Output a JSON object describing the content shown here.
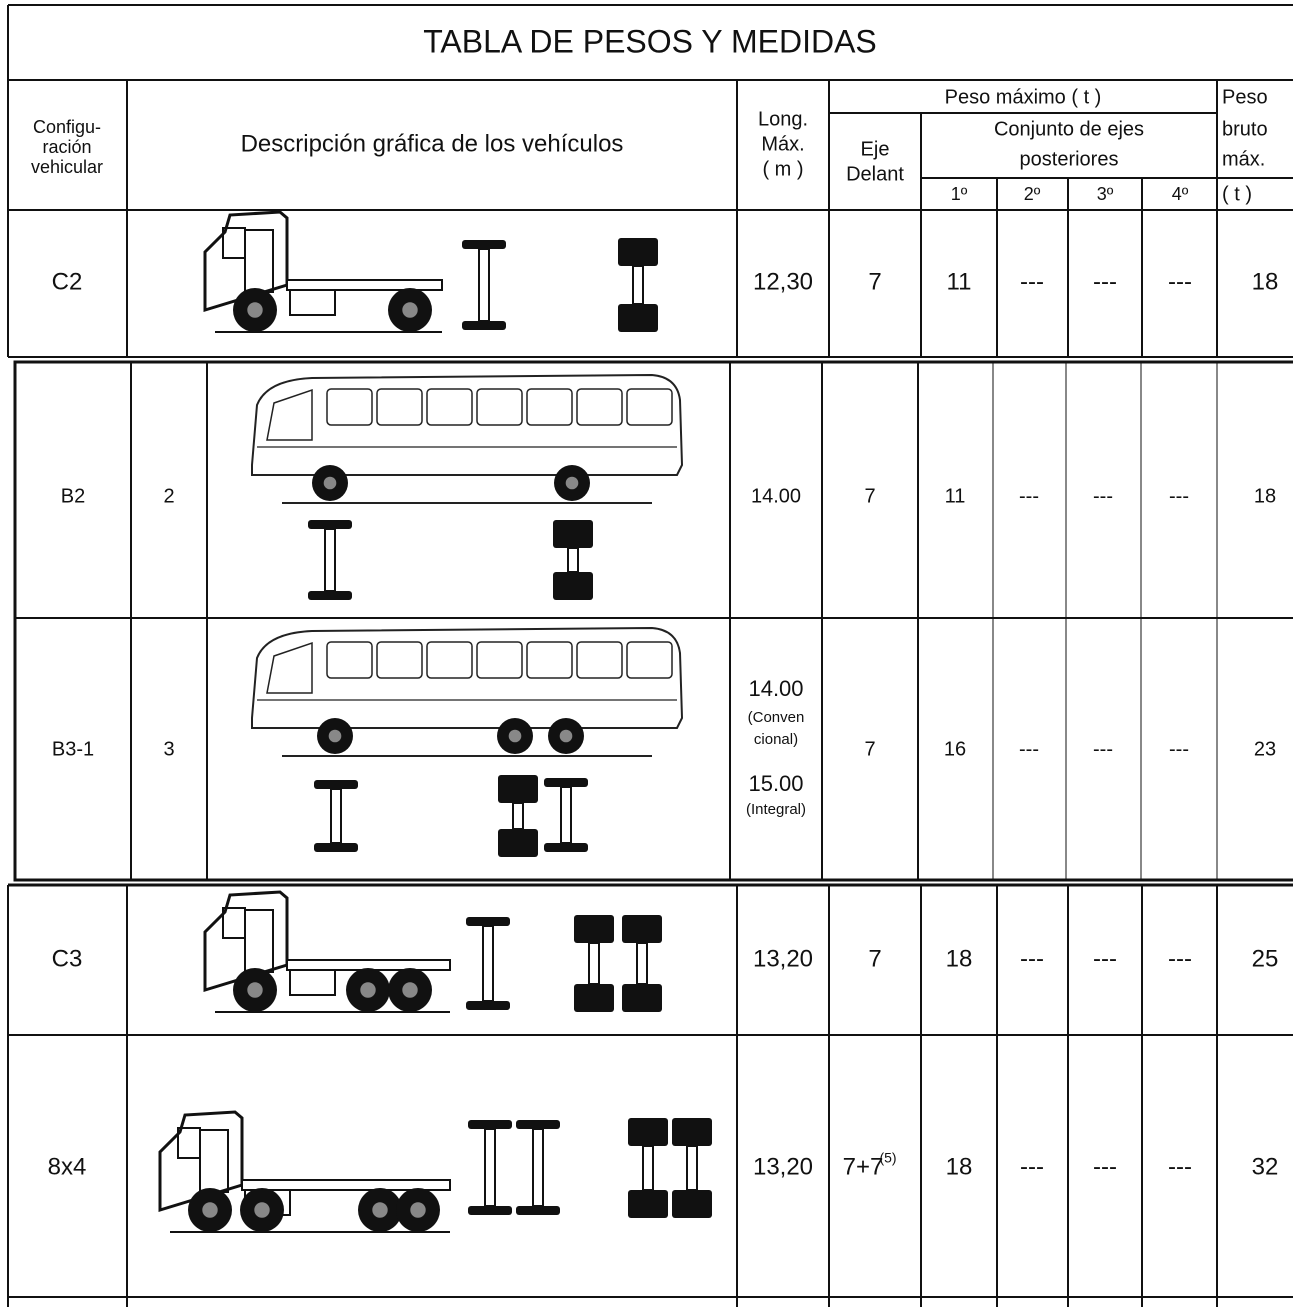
{
  "title": "TABLA DE PESOS Y MEDIDAS",
  "header": {
    "configuration": [
      "Configu-",
      "ración",
      "vehicular"
    ],
    "description": "Descripción gráfica de los vehículos",
    "length": [
      "Long.",
      "Máx.",
      "( m )"
    ],
    "max_weight": "Peso máximo  ( t )",
    "front_axle": [
      "Eje",
      "Delant"
    ],
    "rear_axles": [
      "Conjunto de ejes",
      "posteriores"
    ],
    "rear_axle_numbers": [
      "1º",
      "2º",
      "3º",
      "4º"
    ],
    "gross_weight": [
      "Peso",
      "bruto",
      "máx.",
      "( t )"
    ]
  },
  "rows": [
    {
      "configuration": "C2",
      "length": [
        "12,30"
      ],
      "front_axle": "7",
      "rear_axles": [
        "11",
        "---",
        "---",
        "---"
      ],
      "gross_weight": "18"
    },
    {
      "configuration": "B2",
      "axle_count": "2",
      "length": [
        "14.00"
      ],
      "front_axle": "7",
      "rear_axles": [
        "11",
        "---",
        "---",
        "---"
      ],
      "gross_weight": "18"
    },
    {
      "configuration": "B3-1",
      "axle_count": "3",
      "length": [
        "14.00",
        "(Conven",
        "cional)",
        "15.00",
        "(Integral)"
      ],
      "front_axle": "7",
      "rear_axles": [
        "16",
        "---",
        "---",
        "---"
      ],
      "gross_weight": "23"
    },
    {
      "configuration": "C3",
      "length": [
        "13,20"
      ],
      "front_axle": "7",
      "rear_axles": [
        "18",
        "---",
        "---",
        "---"
      ],
      "gross_weight": "25"
    },
    {
      "configuration": "8x4",
      "length": [
        "13,20"
      ],
      "front_axle": "7+7",
      "front_axle_note": "(5)",
      "rear_axles": [
        "18",
        "---",
        "---",
        "---"
      ],
      "gross_weight": "32"
    }
  ]
}
